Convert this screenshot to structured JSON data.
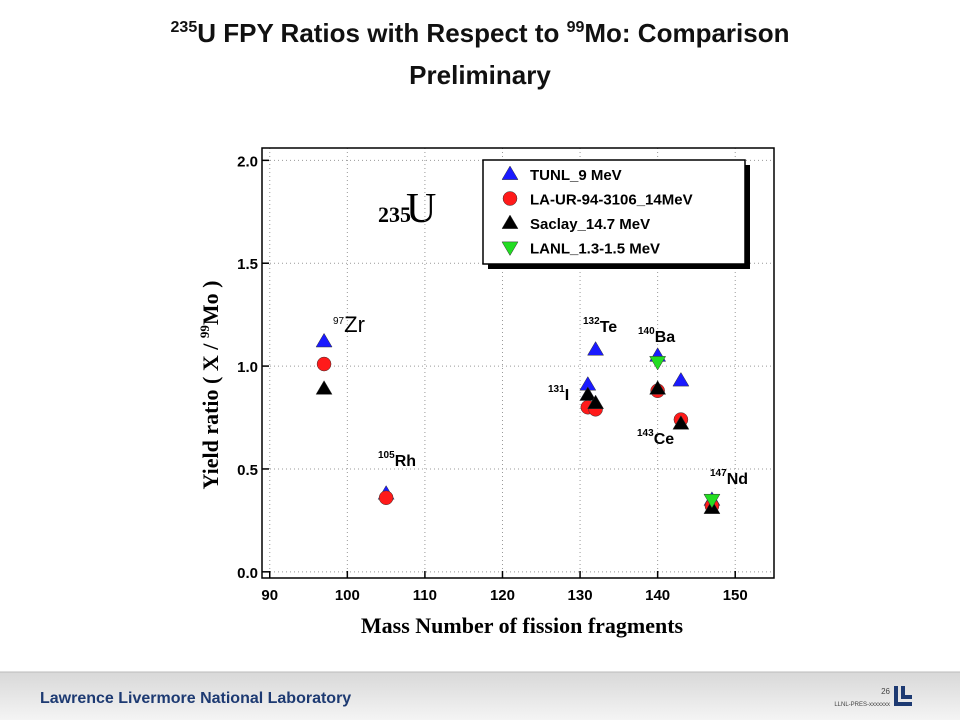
{
  "slide": {
    "title": {
      "line1": [
        "235",
        "U FPY Ratios with Respect to ",
        "99",
        "Mo: Comparison"
      ],
      "line2": "Preliminary"
    },
    "footer": {
      "organization": "Lawrence Livermore National Laboratory",
      "page": "26",
      "code": "LLNL-PRES-xxxxxxx"
    }
  },
  "chart_data": {
    "type": "scatter",
    "inset_label": {
      "mass": "235",
      "element": "U"
    },
    "x_label": "Mass Number of fission fragments",
    "y_label": [
      "Yield ratio ( X / ",
      "99",
      "Mo )"
    ],
    "xlim": [
      89,
      155
    ],
    "xticks": [
      90,
      100,
      110,
      120,
      130,
      140,
      150
    ],
    "ylim": [
      -0.03,
      2.06
    ],
    "yticks": [
      {
        "value": 0,
        "label": "0.0"
      },
      {
        "value": 0.5,
        "label": "0.5"
      },
      {
        "value": 1,
        "label": "1.0"
      },
      {
        "value": 1.5,
        "label": "1.5"
      },
      {
        "value": 2,
        "label": "2.0"
      }
    ],
    "grid": true,
    "legend": "top-right",
    "series": [
      {
        "name": "TUNL_9 MeV",
        "color": "#1a1aff",
        "marker": "triangle-up",
        "x": [
          97,
          105,
          131,
          132,
          140,
          143,
          147
        ],
        "values": [
          1.12,
          0.38,
          0.91,
          1.08,
          1.05,
          0.93,
          0.35
        ]
      },
      {
        "name": "LA-UR-94-3106_14MeV",
        "color": "#ff1a1a",
        "marker": "circle",
        "x": [
          97,
          105,
          131,
          132,
          140,
          143,
          147
        ],
        "values": [
          1.01,
          0.36,
          0.8,
          0.79,
          0.88,
          0.74,
          0.32
        ]
      },
      {
        "name": "Saclay_14.7 MeV",
        "color": "#000000",
        "marker": "triangle-up",
        "x": [
          97,
          131,
          132,
          140,
          143,
          147
        ],
        "values": [
          0.89,
          0.86,
          0.82,
          0.89,
          0.72,
          0.31
        ]
      },
      {
        "name": "LANL_1.3-1.5 MeV",
        "color": "#22dd22",
        "marker": "triangle-down",
        "x": [
          140,
          147
        ],
        "values": [
          1.02,
          0.35
        ]
      }
    ],
    "annotations": [
      {
        "mass": "97",
        "element": "Zr"
      },
      {
        "mass": "105",
        "element": "Rh"
      },
      {
        "mass": "132",
        "element": "Te"
      },
      {
        "mass": "131",
        "element": "I"
      },
      {
        "mass": "140",
        "element": "Ba"
      },
      {
        "mass": "143",
        "element": "Ce"
      },
      {
        "mass": "147",
        "element": "Nd"
      }
    ]
  }
}
